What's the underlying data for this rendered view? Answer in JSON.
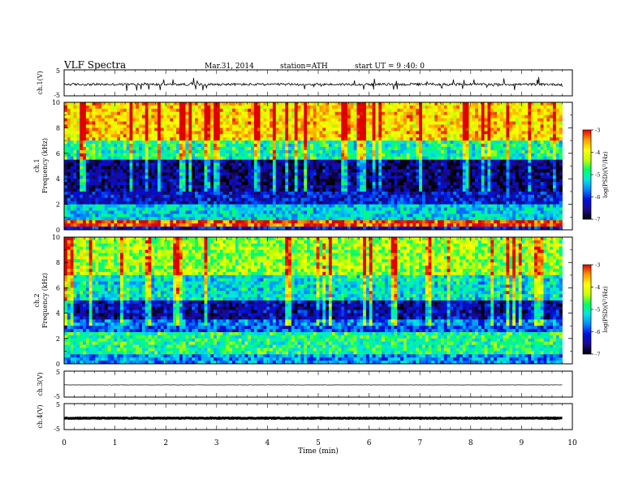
{
  "header": {
    "title": "VLF  Spectra",
    "date": "Mar.31, 2014",
    "station": "station=ATH",
    "start": "start  UT =   9 :40: 0"
  },
  "chart_data": [
    {
      "type": "line",
      "name": "ch1-waveform",
      "ylabel": "ch.1(V)",
      "ylim": [
        -5,
        5
      ],
      "yticks": [
        "5",
        "-5"
      ],
      "xlim": [
        0,
        10
      ],
      "x_end": 9.8,
      "baseline": -0.6,
      "noise_amplitude": 0.9
    },
    {
      "type": "heatmap",
      "name": "ch1-spectrogram",
      "ylabel": "Frequency  (kHz)",
      "panel_label": "ch.1",
      "ylim": [
        0,
        10
      ],
      "yticks": [
        "0",
        "2",
        "4",
        "6",
        "8",
        "10"
      ],
      "xlim": [
        0,
        10
      ],
      "x_end": 9.8,
      "bands_logPSD": [
        {
          "f": [
            0,
            0.3
          ],
          "v": -6.2
        },
        {
          "f": [
            0.3,
            0.8
          ],
          "v": -3.2
        },
        {
          "f": [
            0.8,
            2
          ],
          "v": -5.3
        },
        {
          "f": [
            2,
            3
          ],
          "v": -6.2
        },
        {
          "f": [
            3,
            5.5
          ],
          "v": -6.8
        },
        {
          "f": [
            5.5,
            7
          ],
          "v": -5.2
        },
        {
          "f": [
            7,
            10
          ],
          "v": -4.0
        }
      ],
      "colorbar": {
        "label": "log(PSD)(V²/Hz)",
        "range": [
          -7,
          -3
        ],
        "ticks": [
          "-3",
          "-4",
          "-5",
          "-6",
          "-7"
        ]
      }
    },
    {
      "type": "heatmap",
      "name": "ch2-spectrogram",
      "ylabel": "Frequency  (kHz)",
      "panel_label": "ch.2",
      "ylim": [
        0,
        10
      ],
      "yticks": [
        "0",
        "2",
        "4",
        "6",
        "8",
        "10"
      ],
      "xlim": [
        0,
        10
      ],
      "x_end": 9.8,
      "bands_logPSD": [
        {
          "f": [
            0,
            0.8
          ],
          "v": -5.6
        },
        {
          "f": [
            0.8,
            2.5
          ],
          "v": -4.9
        },
        {
          "f": [
            2.5,
            3.4
          ],
          "v": -5.9
        },
        {
          "f": [
            3.4,
            5
          ],
          "v": -6.6
        },
        {
          "f": [
            5,
            7
          ],
          "v": -5.4
        },
        {
          "f": [
            7,
            10
          ],
          "v": -4.6
        }
      ],
      "colorbar": {
        "label": "log(PSD)(V²/Hz)",
        "range": [
          -7,
          -3
        ],
        "ticks": [
          "-3",
          "-4",
          "-5",
          "-6",
          "-7"
        ]
      }
    },
    {
      "type": "line",
      "name": "ch3-waveform",
      "ylabel": "ch.3(V)",
      "ylim": [
        -5,
        5
      ],
      "yticks": [
        "5",
        "-5"
      ],
      "xlim": [
        0,
        10
      ],
      "x_end": 9.8,
      "baseline": -0.3,
      "noise_amplitude": 0.1
    },
    {
      "type": "line",
      "name": "ch4-waveform",
      "ylabel": "ch.4(V)",
      "ylim": [
        -5,
        5
      ],
      "yticks": [
        "5",
        "-5"
      ],
      "xlim": [
        0,
        10
      ],
      "x_end": 9.8,
      "baseline": -0.6,
      "noise_amplitude": 0.25,
      "xlabel": "Time  (min)",
      "xticks": [
        "0",
        "1",
        "2",
        "3",
        "4",
        "5",
        "6",
        "7",
        "8",
        "9",
        "10"
      ]
    }
  ],
  "colors": {
    "colormap": [
      "#000000",
      "#1b0a8c",
      "#0010e0",
      "#0088ff",
      "#00e6e0",
      "#00ff66",
      "#c8ff00",
      "#ffff00",
      "#ff9a00",
      "#e00000",
      "#ffffff"
    ]
  }
}
